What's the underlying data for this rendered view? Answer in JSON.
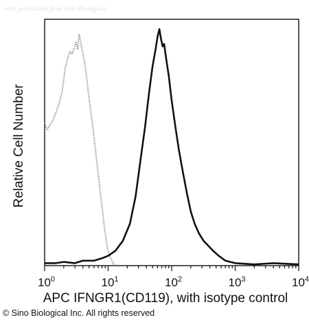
{
  "watermark": "with permission from Sino Biological",
  "copyright": "© Sino Biological Inc. All rights reserved",
  "chart_data": {
    "type": "line",
    "title": "",
    "xlabel": "APC IFNGR1(CD119), with isotype control",
    "ylabel": "Relative Cell Number",
    "x_scale": "log",
    "xlim": [
      1,
      10000
    ],
    "ylim": [
      0,
      100
    ],
    "x_ticks": [
      {
        "value": 1,
        "base": "10",
        "exp": "0"
      },
      {
        "value": 10,
        "base": "10",
        "exp": "1"
      },
      {
        "value": 100,
        "base": "10",
        "exp": "2"
      },
      {
        "value": 1000,
        "base": "10",
        "exp": "3"
      },
      {
        "value": 10000,
        "base": "10",
        "exp": "4"
      }
    ],
    "grid": false,
    "legend": "none",
    "series": [
      {
        "role": "isotype control",
        "color": "#9a9a9a",
        "style": "dotted",
        "x": [
          1.0,
          1.1,
          1.2,
          1.35,
          1.5,
          1.7,
          1.9,
          2.1,
          2.3,
          2.5,
          2.7,
          2.9,
          3.1,
          3.3,
          3.5,
          3.8,
          4.0,
          4.3,
          4.6,
          5.0,
          5.5,
          6.0,
          6.5,
          7.0,
          7.5,
          8.0,
          8.5,
          9.0,
          9.5,
          10.0,
          10.5,
          11.0,
          11.5,
          12.0,
          12.5,
          13.0
        ],
        "y": [
          58,
          55,
          57,
          59,
          62,
          66,
          71,
          80,
          84,
          87,
          86,
          88,
          91,
          88,
          94,
          89,
          86,
          82,
          76,
          68,
          60,
          52,
          44,
          37,
          30,
          24,
          18,
          13,
          9,
          6,
          4,
          3,
          2,
          1,
          0.5,
          0
        ]
      },
      {
        "role": "APC IFNGR1(CD119)",
        "color": "#111111",
        "style": "solid",
        "x": [
          1.0,
          1.5,
          2.0,
          3.0,
          4.0,
          6.0,
          8.0,
          10.0,
          13.0,
          17.0,
          22.0,
          27.0,
          32.0,
          38.0,
          44.0,
          50.0,
          56.0,
          60.0,
          64.0,
          68.0,
          72.0,
          76.0,
          82.0,
          90.0,
          100.0,
          115.0,
          130.0,
          150.0,
          175.0,
          200.0,
          230.0,
          270.0,
          320.0,
          380.0,
          450.0,
          550.0,
          700.0,
          1000.0,
          2000.0,
          4000.0,
          10000.0
        ],
        "y": [
          1,
          1,
          1.5,
          1,
          2,
          2,
          3,
          4,
          6,
          10,
          17,
          28,
          42,
          56,
          70,
          81,
          88,
          93,
          96,
          92,
          89,
          90,
          84,
          77,
          67,
          56,
          47,
          38,
          29,
          22,
          17,
          13,
          10,
          8,
          6,
          4,
          2,
          1,
          0.5,
          1,
          0.5
        ]
      }
    ]
  }
}
